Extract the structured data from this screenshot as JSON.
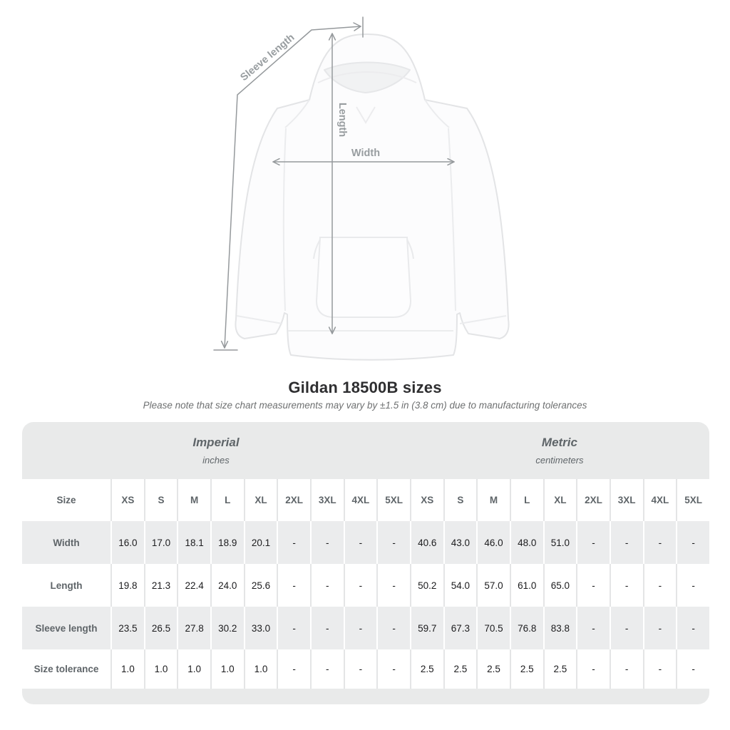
{
  "title": "Gildan 18500B sizes",
  "subtitle": "Please note that size chart measurements may vary by ±1.5 in (3.8 cm) due to manufacturing tolerances",
  "figure": {
    "labels": {
      "sleeve": "Sleeve length",
      "length": "Length",
      "width": "Width"
    }
  },
  "table": {
    "unit_groups": [
      {
        "name": "Imperial",
        "unit": "inches"
      },
      {
        "name": "Metric",
        "unit": "centimeters"
      }
    ],
    "size_column_header": "Size",
    "sizes": [
      "XS",
      "S",
      "M",
      "L",
      "XL",
      "2XL",
      "3XL",
      "4XL",
      "5XL"
    ],
    "rows": [
      {
        "label": "Width",
        "imperial": [
          "16.0",
          "17.0",
          "18.1",
          "18.9",
          "20.1",
          "-",
          "-",
          "-",
          "-"
        ],
        "metric": [
          "40.6",
          "43.0",
          "46.0",
          "48.0",
          "51.0",
          "-",
          "-",
          "-",
          "-"
        ]
      },
      {
        "label": "Length",
        "imperial": [
          "19.8",
          "21.3",
          "22.4",
          "24.0",
          "25.6",
          "-",
          "-",
          "-",
          "-"
        ],
        "metric": [
          "50.2",
          "54.0",
          "57.0",
          "61.0",
          "65.0",
          "-",
          "-",
          "-",
          "-"
        ]
      },
      {
        "label": "Sleeve length",
        "imperial": [
          "23.5",
          "26.5",
          "27.8",
          "30.2",
          "33.0",
          "-",
          "-",
          "-",
          "-"
        ],
        "metric": [
          "59.7",
          "67.3",
          "70.5",
          "76.8",
          "83.8",
          "-",
          "-",
          "-",
          "-"
        ]
      },
      {
        "label": "Size tolerance",
        "imperial": [
          "1.0",
          "1.0",
          "1.0",
          "1.0",
          "1.0",
          "-",
          "-",
          "-",
          "-"
        ],
        "metric": [
          "2.5",
          "2.5",
          "2.5",
          "2.5",
          "2.5",
          "-",
          "-",
          "-",
          "-"
        ]
      }
    ]
  },
  "chart_data": {
    "type": "table",
    "title": "Gildan 18500B sizes",
    "note": "Please note that size chart measurements may vary by ±1.5 in (3.8 cm) due to manufacturing tolerances",
    "columns": [
      "Size",
      "XS",
      "S",
      "M",
      "L",
      "XL",
      "2XL",
      "3XL",
      "4XL",
      "5XL"
    ],
    "units": {
      "imperial": "inches",
      "metric": "centimeters"
    },
    "imperial_rows": [
      [
        "Width",
        16.0,
        17.0,
        18.1,
        18.9,
        20.1,
        null,
        null,
        null,
        null
      ],
      [
        "Length",
        19.8,
        21.3,
        22.4,
        24.0,
        25.6,
        null,
        null,
        null,
        null
      ],
      [
        "Sleeve length",
        23.5,
        26.5,
        27.8,
        30.2,
        33.0,
        null,
        null,
        null,
        null
      ],
      [
        "Size tolerance",
        1.0,
        1.0,
        1.0,
        1.0,
        1.0,
        null,
        null,
        null,
        null
      ]
    ],
    "metric_rows": [
      [
        "Width",
        40.6,
        43.0,
        46.0,
        48.0,
        51.0,
        null,
        null,
        null,
        null
      ],
      [
        "Length",
        50.2,
        54.0,
        57.0,
        61.0,
        65.0,
        null,
        null,
        null,
        null
      ],
      [
        "Sleeve length",
        59.7,
        67.3,
        70.5,
        76.8,
        83.8,
        null,
        null,
        null,
        null
      ],
      [
        "Size tolerance",
        2.5,
        2.5,
        2.5,
        2.5,
        2.5,
        null,
        null,
        null,
        null
      ]
    ]
  },
  "colors": {
    "band_gray": "#e9eaea",
    "row_gray": "#ebeced",
    "header_text": "#5f6569",
    "value_text": "#1c1c1e",
    "measure_gray": "#95999c"
  }
}
